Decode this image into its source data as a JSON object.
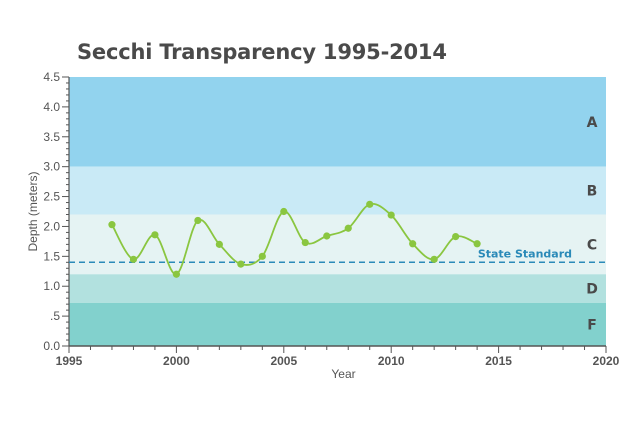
{
  "chart_data": {
    "type": "line",
    "title": "Secchi Transparency 1995-2014",
    "xlabel": "Year",
    "ylabel": "Depth (meters)",
    "xlim": [
      1995,
      2020
    ],
    "ylim": [
      0,
      4.5
    ],
    "x_ticks": [
      "1995",
      "2000",
      "2005",
      "2010",
      "2015",
      "2020"
    ],
    "y_ticks": [
      "0.0",
      ".5",
      "1.0",
      "1.5",
      "2.0",
      "2.5",
      "3.0",
      "3.5",
      "4.0",
      "4.5"
    ],
    "grid": false,
    "series": [
      {
        "x": [
          1997,
          1998,
          1999,
          2000,
          2001,
          2002,
          2003,
          2004,
          2005,
          2006,
          2007,
          2008,
          2009,
          2010,
          2011,
          2012,
          2013,
          2014
        ],
        "y": [
          2.03,
          1.45,
          1.86,
          1.2,
          2.1,
          1.7,
          1.37,
          1.5,
          2.25,
          1.73,
          1.84,
          1.97,
          2.37,
          2.19,
          1.71,
          1.45,
          1.83,
          1.71
        ],
        "color": "#8ac640"
      }
    ],
    "zones": [
      {
        "label": "A",
        "from": 3.0,
        "to": 4.5,
        "color": "#92d3ee"
      },
      {
        "label": "B",
        "from": 2.2,
        "to": 3.0,
        "color": "#c9eaf6"
      },
      {
        "label": "C",
        "from": 1.2,
        "to": 2.2,
        "color": "#e5f3f3"
      },
      {
        "label": "D",
        "from": 0.72,
        "to": 1.2,
        "color": "#b2e1df"
      },
      {
        "label": "F",
        "from": 0.0,
        "to": 0.72,
        "color": "#82d1cd"
      }
    ],
    "reference_line": {
      "label": "State Standard",
      "y": 1.4,
      "color": "#2a8ab8"
    }
  }
}
